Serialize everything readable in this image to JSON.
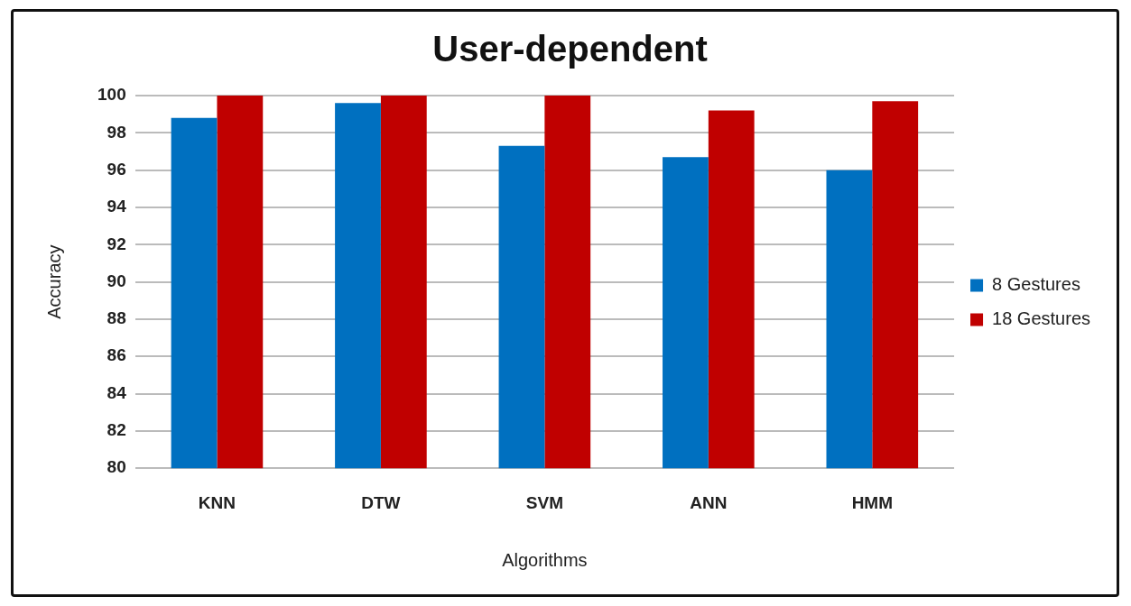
{
  "chart_data": {
    "type": "bar",
    "title": "User-dependent",
    "xlabel": "Algorithms",
    "ylabel": "Accuracy",
    "categories": [
      "KNN",
      "DTW",
      "SVM",
      "ANN",
      "HMM"
    ],
    "series": [
      {
        "name": "8 Gestures",
        "color": "#0070c0",
        "values": [
          98.8,
          99.6,
          97.3,
          96.7,
          96.0
        ]
      },
      {
        "name": "18 Gestures",
        "color": "#c00000",
        "values": [
          100,
          100,
          100,
          99.2,
          99.7
        ]
      }
    ],
    "ylim": [
      80,
      100
    ],
    "yticks": [
      80,
      82,
      84,
      86,
      88,
      90,
      92,
      94,
      96,
      98,
      100
    ],
    "grid": "y",
    "legend": "right"
  }
}
